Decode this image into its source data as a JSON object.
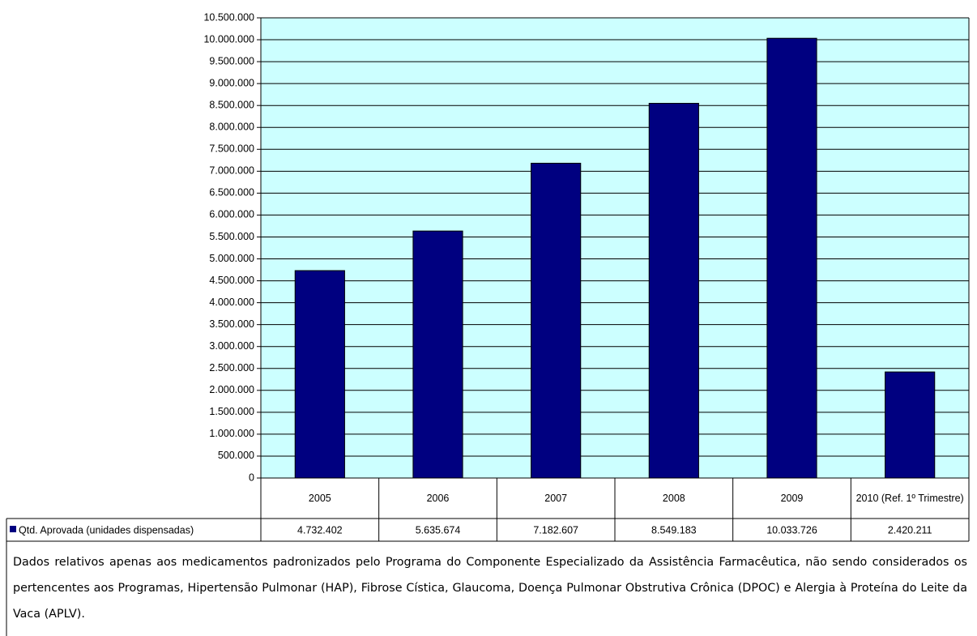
{
  "chart_data": {
    "type": "bar",
    "categories": [
      "2005",
      "2006",
      "2007",
      "2008",
      "2009",
      "2010 (Ref. 1º Trimestre)"
    ],
    "series": [
      {
        "name": "Qtd. Aprovada (unidades dispensadas)",
        "color": "#000080",
        "values": [
          4732402,
          5635674,
          7182607,
          8549183,
          10033726,
          2420211
        ],
        "value_labels": [
          "4.732.402",
          "5.635.674",
          "7.182.607",
          "8.549.183",
          "10.033.726",
          "2.420.211"
        ]
      }
    ],
    "ylim": [
      0,
      10500000
    ],
    "yticks": [
      0,
      {
        "value": 500000,
        "label": "500.000"
      },
      {
        "value": 1000000,
        "label": "1.000.000"
      },
      {
        "value": 1500000,
        "label": "1.500.000"
      },
      {
        "value": 2000000,
        "label": "2.000.000"
      },
      {
        "value": 2500000,
        "label": "2.500.000"
      },
      {
        "value": 3000000,
        "label": "3.000.000"
      },
      {
        "value": 3500000,
        "label": "3.500.000"
      },
      {
        "value": 4000000,
        "label": "4.000.000"
      },
      {
        "value": 4500000,
        "label": "4.500.000"
      },
      {
        "value": 5000000,
        "label": "5.000.000"
      },
      {
        "value": 5500000,
        "label": "5.500.000"
      },
      {
        "value": 6000000,
        "label": "6.000.000"
      },
      {
        "value": 6500000,
        "label": "6.500.000"
      },
      {
        "value": 7000000,
        "label": "7.000.000"
      },
      {
        "value": 7500000,
        "label": "7.500.000"
      },
      {
        "value": 8000000,
        "label": "8.000.000"
      },
      {
        "value": 8500000,
        "label": "8.500.000"
      },
      {
        "value": 9000000,
        "label": "9.000.000"
      },
      {
        "value": 9500000,
        "label": "9.500.000"
      },
      {
        "value": 10000000,
        "label": "10.000.000"
      },
      {
        "value": 10500000,
        "label": "10.500.000"
      }
    ],
    "grid": true,
    "plot_background": "#ccffff",
    "note": "Dados relativos apenas aos medicamentos padronizados pelo Programa do Componente Especializado da Assistência Farmacêutica, não sendo considerados os pertencentes aos Programas, Hipertensão Pulmonar (HAP), Fibrose Cística, Glaucoma, Doença Pulmonar Obstrutiva Crônica (DPOC) e Alergia à Proteína do Leite da Vaca (APLV)."
  }
}
